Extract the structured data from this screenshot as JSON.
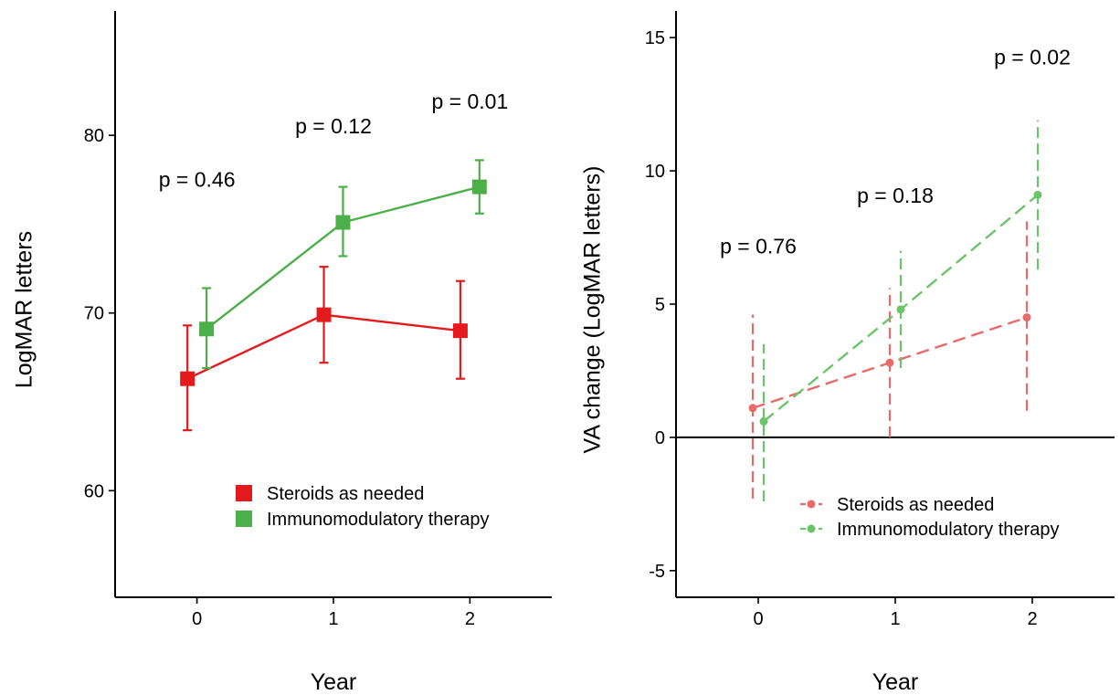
{
  "chart_data": [
    {
      "type": "line",
      "xlabel": "Year",
      "ylabel": "LogMAR letters",
      "x_ticks": [
        "0",
        "1",
        "2"
      ],
      "y_ticks": [
        "60",
        "70",
        "80"
      ],
      "xlim": [
        -0.6,
        2.6
      ],
      "ylim": [
        54,
        87
      ],
      "grid": false,
      "marker": "square",
      "legend_position": "bottom-right",
      "series": [
        {
          "name": "Steroids as needed",
          "color": "#e41a1c",
          "line_style": "solid",
          "x_offset": -0.07,
          "points": [
            {
              "x": 0,
              "y": 66.3,
              "lower": 63.4,
              "upper": 69.3
            },
            {
              "x": 1,
              "y": 69.9,
              "lower": 67.2,
              "upper": 72.6
            },
            {
              "x": 2,
              "y": 69.0,
              "lower": 66.3,
              "upper": 71.8
            }
          ]
        },
        {
          "name": "Immunomodulatory therapy",
          "color": "#4daf4a",
          "line_style": "solid",
          "x_offset": 0.07,
          "points": [
            {
              "x": 0,
              "y": 69.1,
              "lower": 66.9,
              "upper": 71.4
            },
            {
              "x": 1,
              "y": 75.1,
              "lower": 73.2,
              "upper": 77.1
            },
            {
              "x": 2,
              "y": 77.1,
              "lower": 75.6,
              "upper": 78.6
            }
          ]
        }
      ],
      "annotations": [
        {
          "text": "p = 0.46",
          "x": 0,
          "y": 77.1
        },
        {
          "text": "p = 0.12",
          "x": 1,
          "y": 80.1
        },
        {
          "text": "p = 0.01",
          "x": 2,
          "y": 81.5
        }
      ]
    },
    {
      "type": "line",
      "xlabel": "Year",
      "ylabel": "VA change (LogMAR letters)",
      "x_ticks": [
        "0",
        "1",
        "2"
      ],
      "y_ticks": [
        "-5",
        "0",
        "5",
        "10",
        "15"
      ],
      "xlim": [
        -0.6,
        2.6
      ],
      "ylim": [
        -6,
        16
      ],
      "grid": false,
      "reference_line_y": 0,
      "marker": "circle",
      "legend_position": "bottom-right",
      "series": [
        {
          "name": "Steroids as needed",
          "color": "#e86a6a",
          "line_style": "dashed",
          "x_offset": -0.04,
          "points": [
            {
              "x": 0,
              "y": 1.1,
              "lower": -2.3,
              "upper": 4.6
            },
            {
              "x": 1,
              "y": 2.8,
              "lower": 0.0,
              "upper": 5.6
            },
            {
              "x": 2,
              "y": 4.5,
              "lower": 1.0,
              "upper": 8.1
            }
          ]
        },
        {
          "name": "Immunomodulatory therapy",
          "color": "#6cc46a",
          "line_style": "dashed",
          "x_offset": 0.04,
          "points": [
            {
              "x": 0,
              "y": 0.6,
              "lower": -2.4,
              "upper": 3.5
            },
            {
              "x": 1,
              "y": 4.8,
              "lower": 2.6,
              "upper": 7.0
            },
            {
              "x": 2,
              "y": 9.1,
              "lower": 6.3,
              "upper": 11.9
            }
          ]
        }
      ],
      "annotations": [
        {
          "text": "p = 0.76",
          "x": 0,
          "y": 6.9
        },
        {
          "text": "p = 0.18",
          "x": 1,
          "y": 8.8
        },
        {
          "text": "p = 0.02",
          "x": 2,
          "y": 14.0
        }
      ]
    }
  ]
}
